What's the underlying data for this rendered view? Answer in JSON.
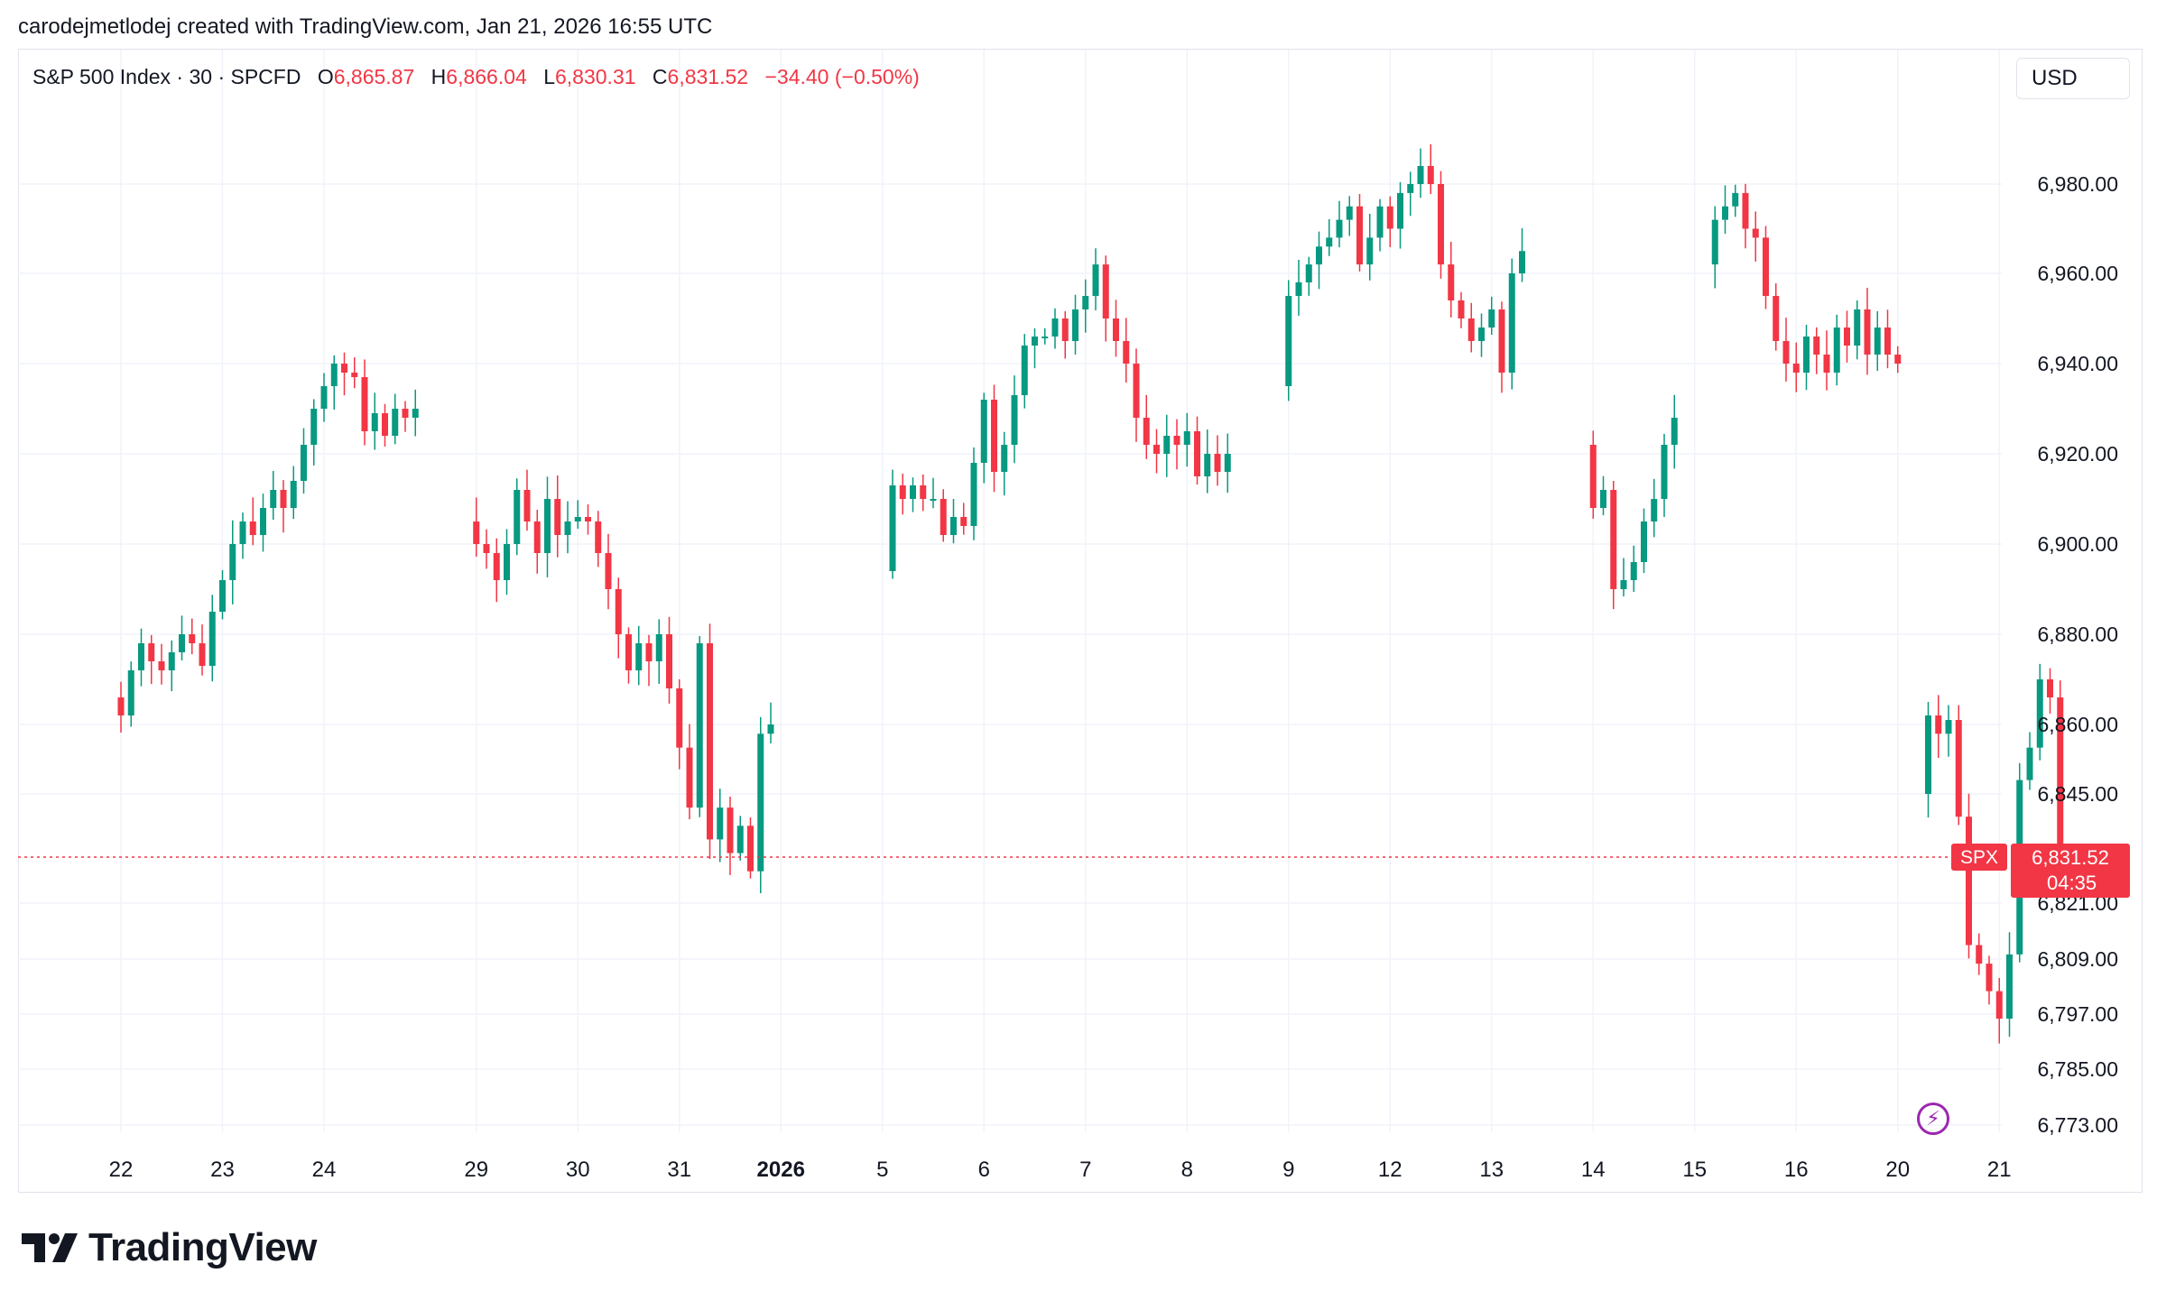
{
  "header": {
    "credit": "carodejmetlodej created with TradingView.com, Jan 21, 2026 16:55 UTC"
  },
  "legend": {
    "symbol": "S&P 500 Index · 30 · SPCFD",
    "open_label": "O",
    "open": "6,865.87",
    "high_label": "H",
    "high": "6,866.04",
    "low_label": "L",
    "low": "6,830.31",
    "close_label": "C",
    "close": "6,831.52",
    "change": "−34.40 (−0.50%)"
  },
  "currency": "USD",
  "price_tag": {
    "symbol": "SPX",
    "price": "6,831.52",
    "countdown": "04:35"
  },
  "brand": {
    "name": "TradingView"
  },
  "colors": {
    "up": "#089981",
    "down": "#f23645",
    "grid": "#f0f3fa",
    "text": "#131722",
    "accent": "#9c27b0"
  },
  "chart_data": {
    "type": "candlestick",
    "interval": "30",
    "last_price": 6831.52,
    "y_ticks": [
      "6,980.00",
      "6,960.00",
      "6,940.00",
      "6,920.00",
      "6,900.00",
      "6,880.00",
      "6,860.00",
      "6,845.00",
      "6,821.00",
      "6,809.00",
      "6,797.00",
      "6,785.00",
      "6,773.00"
    ],
    "y_tick_values": [
      6980,
      6960,
      6940,
      6920,
      6900,
      6880,
      6860,
      6845,
      6821,
      6809,
      6797,
      6785,
      6773
    ],
    "x_ticks": [
      {
        "label": "22",
        "bar": 0
      },
      {
        "label": "23",
        "bar": 10
      },
      {
        "label": "24",
        "bar": 20
      },
      {
        "label": "29",
        "bar": 35
      },
      {
        "label": "30",
        "bar": 45
      },
      {
        "label": "31",
        "bar": 55
      },
      {
        "label": "2026",
        "bar": 65,
        "bold": true
      },
      {
        "label": "5",
        "bar": 75
      },
      {
        "label": "6",
        "bar": 85
      },
      {
        "label": "7",
        "bar": 95
      },
      {
        "label": "8",
        "bar": 105
      },
      {
        "label": "9",
        "bar": 115
      },
      {
        "label": "12",
        "bar": 125
      },
      {
        "label": "13",
        "bar": 135
      },
      {
        "label": "14",
        "bar": 145
      },
      {
        "label": "15",
        "bar": 155
      },
      {
        "label": "16",
        "bar": 165
      },
      {
        "label": "20",
        "bar": 175
      },
      {
        "label": "21",
        "bar": 185
      }
    ],
    "segments": [
      {
        "start": 0,
        "path": [
          6866,
          6862,
          6872,
          6878,
          6874,
          6872,
          6876,
          6880,
          6878,
          6873,
          6885,
          6892,
          6900,
          6905,
          6902,
          6908,
          6912,
          6908,
          6914,
          6922,
          6930,
          6935,
          6940,
          6938,
          6937,
          6925,
          6929,
          6924,
          6930,
          6928,
          6930
        ]
      },
      {
        "start": 35,
        "path": [
          6905,
          6900,
          6898,
          6892,
          6900,
          6912,
          6905,
          6898,
          6910,
          6902,
          6905,
          6906,
          6905,
          6898,
          6890,
          6880,
          6872,
          6878,
          6874,
          6880,
          6868,
          6855,
          6842,
          6878,
          6835,
          6842,
          6832,
          6838,
          6828,
          6858,
          6860
        ]
      },
      {
        "start": 76,
        "path": [
          6894,
          6913,
          6910,
          6913,
          6910,
          6910,
          6902,
          6906,
          6904,
          6918,
          6932,
          6916,
          6922,
          6933,
          6944,
          6946,
          6946,
          6950,
          6945,
          6952,
          6955,
          6962,
          6950,
          6945,
          6940,
          6928,
          6922,
          6920,
          6924,
          6922,
          6925,
          6915,
          6920,
          6916,
          6920
        ]
      },
      {
        "start": 115,
        "path": [
          6935,
          6955,
          6958,
          6962,
          6966,
          6968,
          6972,
          6975,
          6962,
          6968,
          6975,
          6970,
          6978,
          6980,
          6984,
          6980,
          6962,
          6954,
          6950,
          6945,
          6948,
          6952,
          6938,
          6960,
          6965
        ]
      },
      {
        "start": 145,
        "path": [
          6922,
          6908,
          6912,
          6890,
          6892,
          6896,
          6905,
          6910,
          6922,
          6928
        ]
      },
      {
        "start": 157,
        "path": [
          6962,
          6972,
          6975,
          6978,
          6970,
          6968,
          6955,
          6945,
          6940,
          6938,
          6946,
          6942,
          6938,
          6948,
          6944,
          6952,
          6942,
          6948,
          6942,
          6940
        ]
      },
      {
        "start": 178,
        "path": [
          6845,
          6862,
          6858,
          6861,
          6840,
          6812,
          6808,
          6802,
          6796,
          6810,
          6848,
          6855,
          6870,
          6866,
          6830
        ]
      }
    ]
  }
}
